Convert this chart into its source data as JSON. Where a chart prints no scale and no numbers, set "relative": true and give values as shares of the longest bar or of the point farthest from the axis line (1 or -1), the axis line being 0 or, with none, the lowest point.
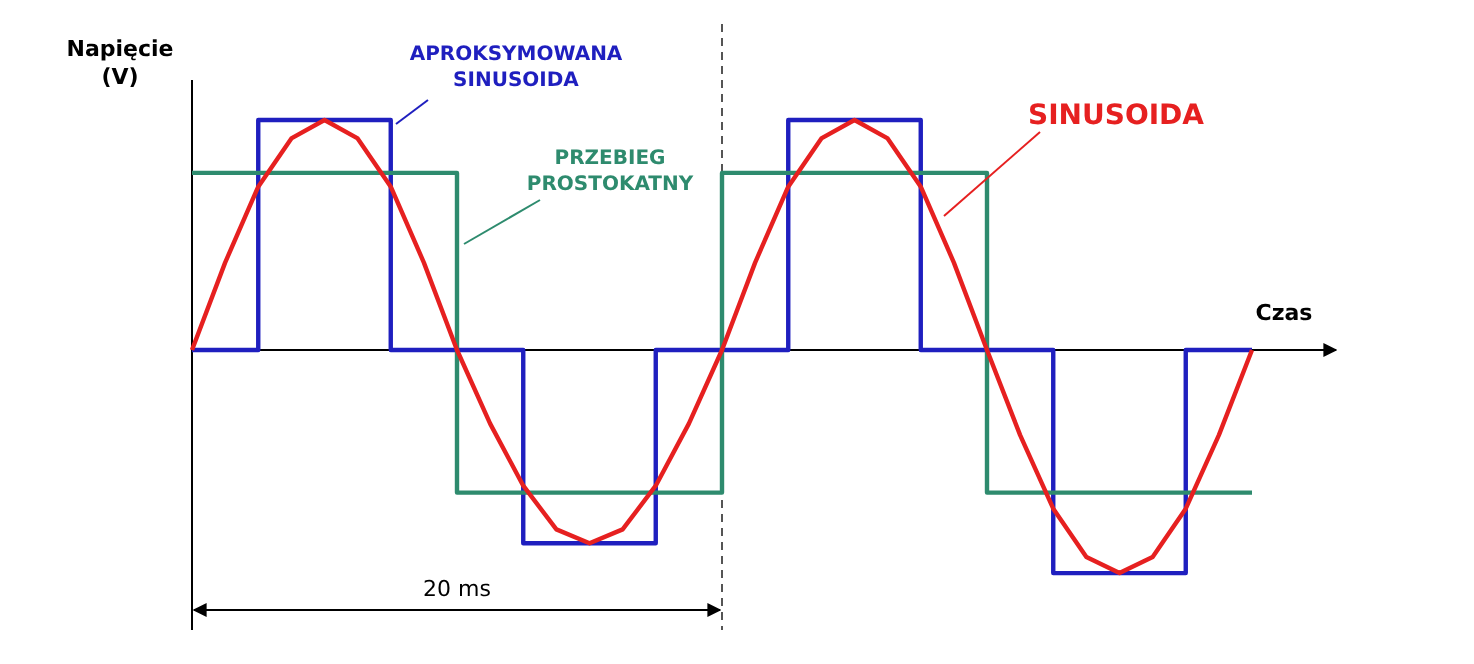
{
  "chart_data": {
    "type": "line",
    "relative": true,
    "xlabel": "Czas",
    "ylabel": "Napięcie (V)",
    "annotations": [
      "20 ms"
    ],
    "legend": false,
    "categories": [
      null,
      null,
      null,
      null,
      null,
      null,
      null,
      null,
      null,
      null,
      null,
      null,
      null,
      null,
      null,
      null,
      null,
      null,
      null,
      null,
      null,
      null,
      null,
      null,
      null,
      null,
      null,
      null,
      null,
      null,
      null,
      null,
      null
    ],
    "series": [
      {
        "name": "APROKSYMOWANA SINUSOIDA",
        "type": "step",
        "color": "#1f1fbf",
        "values": [
          0,
          0,
          1,
          1,
          1,
          1,
          0,
          0,
          0,
          0,
          -0.84,
          -0.84,
          -0.84,
          -0.84,
          0,
          0,
          0,
          0,
          1,
          1,
          1,
          1,
          0,
          0,
          0,
          0,
          -0.97,
          -0.97,
          -0.97,
          -0.97,
          0,
          0,
          0
        ]
      },
      {
        "name": "PRZEBIEG PROSTOKATNY",
        "type": "step",
        "color": "#2e8b6e",
        "values": [
          0.77,
          0.77,
          0.77,
          0.77,
          0.77,
          0.77,
          0.77,
          0.77,
          -0.62,
          -0.62,
          -0.62,
          -0.62,
          -0.62,
          -0.62,
          -0.62,
          -0.62,
          0.77,
          0.77,
          0.77,
          0.77,
          0.77,
          0.77,
          0.77,
          0.77,
          -0.62,
          -0.62,
          -0.62,
          -0.62,
          -0.62,
          -0.62,
          -0.62,
          -0.62,
          -0.62
        ]
      },
      {
        "name": "SINUSOIDA",
        "type": "line",
        "color": "#e62020",
        "values": [
          0,
          0.38,
          0.71,
          0.92,
          1,
          0.92,
          0.71,
          0.38,
          0,
          -0.32,
          -0.59,
          -0.78,
          -0.84,
          -0.78,
          -0.59,
          -0.32,
          0,
          0.38,
          0.71,
          0.92,
          1,
          0.92,
          0.71,
          0.38,
          0,
          -0.37,
          -0.69,
          -0.9,
          -0.97,
          -0.9,
          -0.69,
          -0.37,
          0
        ]
      }
    ]
  }
}
